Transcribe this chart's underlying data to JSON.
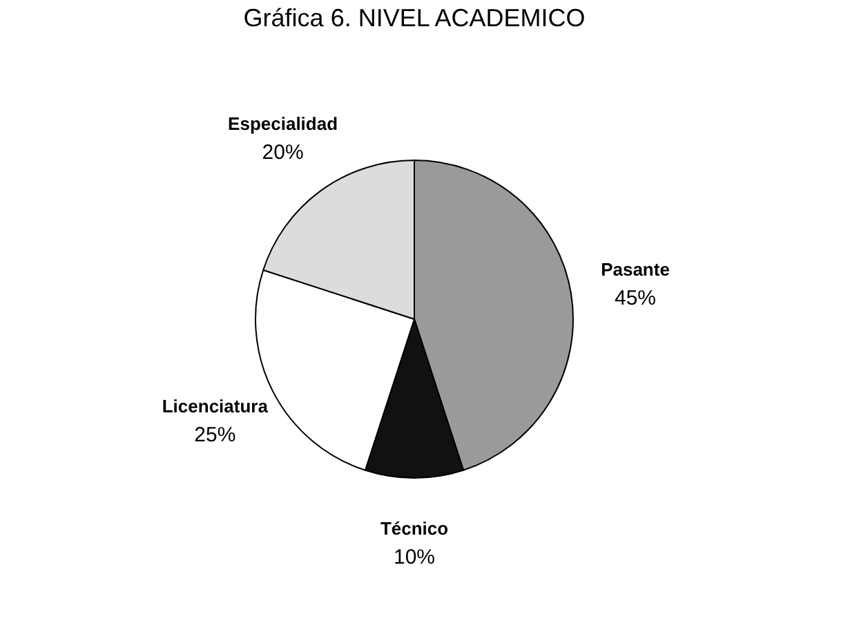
{
  "chart_data": {
    "type": "pie",
    "title": "Gráfica 6.  NIVEL ACADEMICO",
    "categories": [
      "Pasante",
      "Técnico",
      "Licenciatura",
      "Especialidad"
    ],
    "values": [
      45,
      10,
      25,
      20
    ],
    "value_labels": [
      "45%",
      "10%",
      "25%",
      "20%"
    ],
    "colors": [
      "#9a9a9a",
      "#111111",
      "#ffffff",
      "#dcdcdc"
    ],
    "legend": false
  }
}
